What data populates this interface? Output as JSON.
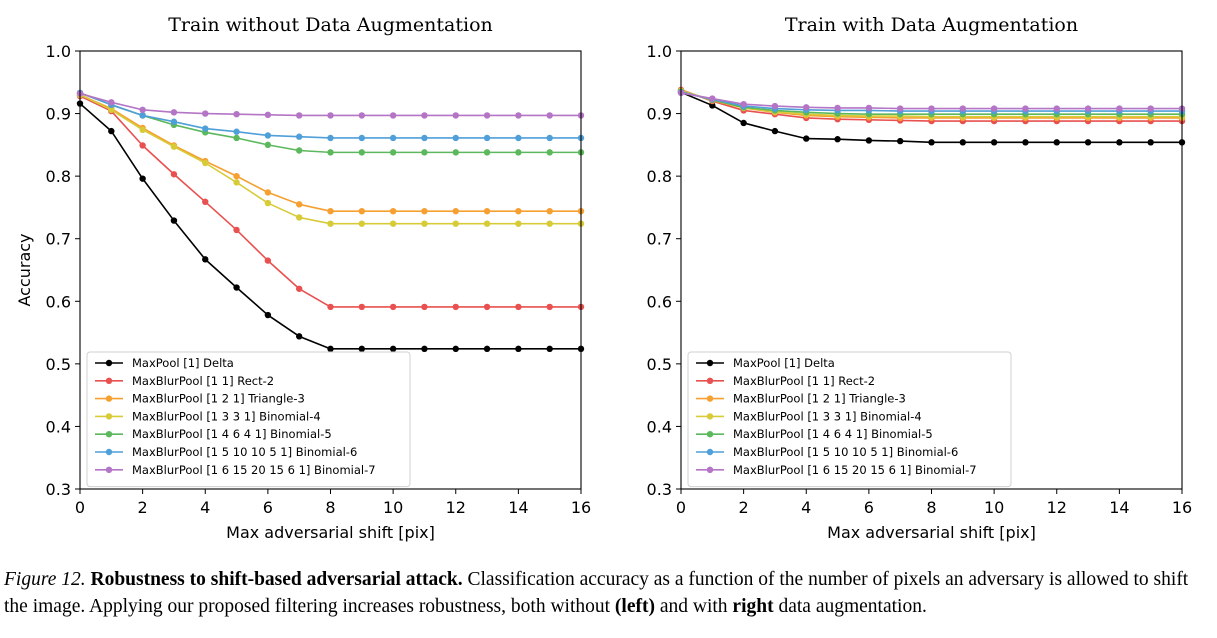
{
  "chart_data": [
    {
      "type": "line",
      "title": "Train without Data Augmentation",
      "xlabel": "Max adversarial shift [pix]",
      "ylabel": "Accuracy",
      "xlim": [
        0,
        16
      ],
      "ylim": [
        0.3,
        1.0
      ],
      "xticks": [
        0,
        2,
        4,
        6,
        8,
        10,
        12,
        14,
        16
      ],
      "yticks": [
        0.3,
        0.4,
        0.5,
        0.6,
        0.7,
        0.8,
        0.9,
        1.0
      ],
      "grid": false,
      "legend_position": "lower-left",
      "x": [
        0,
        1,
        2,
        3,
        4,
        5,
        6,
        7,
        8,
        9,
        10,
        11,
        12,
        13,
        14,
        15,
        16
      ],
      "series": [
        {
          "name": "MaxPool [1] Delta",
          "color": "#000000",
          "values": [
            0.916,
            0.872,
            0.796,
            0.729,
            0.667,
            0.622,
            0.578,
            0.544,
            0.524,
            0.524,
            0.524,
            0.524,
            0.524,
            0.524,
            0.524,
            0.524,
            0.524
          ]
        },
        {
          "name": "MaxBlurPool [1 1] Rect-2",
          "color": "#e8514f",
          "values": [
            0.928,
            0.904,
            0.849,
            0.803,
            0.759,
            0.714,
            0.665,
            0.62,
            0.591,
            0.591,
            0.591,
            0.591,
            0.591,
            0.591,
            0.591,
            0.591,
            0.591
          ]
        },
        {
          "name": "MaxBlurPool [1 2 1] Triangle-3",
          "color": "#f5a031",
          "values": [
            0.93,
            0.908,
            0.877,
            0.849,
            0.824,
            0.8,
            0.774,
            0.755,
            0.744,
            0.744,
            0.744,
            0.744,
            0.744,
            0.744,
            0.744,
            0.744,
            0.744
          ]
        },
        {
          "name": "MaxBlurPool [1 3 3 1] Binomial-4",
          "color": "#d8cb38",
          "values": [
            0.93,
            0.906,
            0.874,
            0.847,
            0.821,
            0.79,
            0.757,
            0.734,
            0.724,
            0.724,
            0.724,
            0.724,
            0.724,
            0.724,
            0.724,
            0.724,
            0.724
          ]
        },
        {
          "name": "MaxBlurPool [1 4 6 4 1] Binomial-5",
          "color": "#5cb85c",
          "values": [
            0.933,
            0.914,
            0.897,
            0.882,
            0.87,
            0.861,
            0.85,
            0.841,
            0.838,
            0.838,
            0.838,
            0.838,
            0.838,
            0.838,
            0.838,
            0.838,
            0.838
          ]
        },
        {
          "name": "MaxBlurPool [1 5 10 10 5 1] Binomial-6",
          "color": "#4f9fd8",
          "values": [
            0.933,
            0.914,
            0.897,
            0.887,
            0.876,
            0.871,
            0.865,
            0.863,
            0.861,
            0.861,
            0.861,
            0.861,
            0.861,
            0.861,
            0.861,
            0.861,
            0.861
          ]
        },
        {
          "name": "MaxBlurPool [1 6 15 20 15 6 1] Binomial-7",
          "color": "#b475c6",
          "values": [
            0.932,
            0.918,
            0.906,
            0.902,
            0.9,
            0.899,
            0.898,
            0.897,
            0.897,
            0.897,
            0.897,
            0.897,
            0.897,
            0.897,
            0.897,
            0.897,
            0.897
          ]
        }
      ]
    },
    {
      "type": "line",
      "title": "Train with Data Augmentation",
      "xlabel": "Max adversarial shift [pix]",
      "ylabel": "",
      "xlim": [
        0,
        16
      ],
      "ylim": [
        0.3,
        1.0
      ],
      "xticks": [
        0,
        2,
        4,
        6,
        8,
        10,
        12,
        14,
        16
      ],
      "yticks": [
        0.3,
        0.4,
        0.5,
        0.6,
        0.7,
        0.8,
        0.9,
        1.0
      ],
      "grid": false,
      "legend_position": "lower-left",
      "x": [
        0,
        1,
        2,
        3,
        4,
        5,
        6,
        7,
        8,
        9,
        10,
        11,
        12,
        13,
        14,
        15,
        16
      ],
      "series": [
        {
          "name": "MaxPool [1] Delta",
          "color": "#000000",
          "values": [
            0.934,
            0.913,
            0.885,
            0.872,
            0.86,
            0.859,
            0.857,
            0.856,
            0.854,
            0.854,
            0.854,
            0.854,
            0.854,
            0.854,
            0.854,
            0.854,
            0.854
          ]
        },
        {
          "name": "MaxBlurPool [1 1] Rect-2",
          "color": "#e8514f",
          "values": [
            0.938,
            0.92,
            0.905,
            0.899,
            0.893,
            0.891,
            0.89,
            0.889,
            0.888,
            0.888,
            0.888,
            0.888,
            0.888,
            0.888,
            0.888,
            0.888,
            0.888
          ]
        },
        {
          "name": "MaxBlurPool [1 2 1] Triangle-3",
          "color": "#f5a031",
          "values": [
            0.937,
            0.921,
            0.909,
            0.902,
            0.897,
            0.895,
            0.894,
            0.893,
            0.893,
            0.893,
            0.893,
            0.893,
            0.893,
            0.893,
            0.893,
            0.893,
            0.893
          ]
        },
        {
          "name": "MaxBlurPool [1 3 3 1] Binomial-4",
          "color": "#d8cb38",
          "values": [
            0.936,
            0.922,
            0.909,
            0.903,
            0.899,
            0.897,
            0.896,
            0.896,
            0.895,
            0.895,
            0.895,
            0.895,
            0.895,
            0.895,
            0.895,
            0.895,
            0.895
          ]
        },
        {
          "name": "MaxBlurPool [1 4 6 4 1] Binomial-5",
          "color": "#5cb85c",
          "values": [
            0.935,
            0.922,
            0.91,
            0.905,
            0.902,
            0.9,
            0.899,
            0.899,
            0.899,
            0.899,
            0.899,
            0.899,
            0.899,
            0.899,
            0.899,
            0.899,
            0.899
          ]
        },
        {
          "name": "MaxBlurPool [1 5 10 10 5 1] Binomial-6",
          "color": "#4f9fd8",
          "values": [
            0.934,
            0.923,
            0.912,
            0.908,
            0.906,
            0.905,
            0.905,
            0.904,
            0.904,
            0.904,
            0.904,
            0.904,
            0.904,
            0.904,
            0.904,
            0.904,
            0.904
          ]
        },
        {
          "name": "MaxBlurPool [1 6 15 20 15 6 1] Binomial-7",
          "color": "#b475c6",
          "values": [
            0.933,
            0.924,
            0.915,
            0.912,
            0.91,
            0.909,
            0.909,
            0.908,
            0.908,
            0.908,
            0.908,
            0.908,
            0.908,
            0.908,
            0.908,
            0.908,
            0.908
          ]
        }
      ]
    }
  ],
  "caption": {
    "figure_number": "Figure 12.",
    "bold_title": "Robustness to shift-based adversarial attack.",
    "text_1": " Classification accuracy as a function of the number of pixels an adversary is allowed to shift the image. Applying our proposed filtering increases robustness, both without ",
    "bold_left": "(left)",
    "text_2": " and with ",
    "bold_right": "right",
    "text_3": " data augmentation."
  }
}
